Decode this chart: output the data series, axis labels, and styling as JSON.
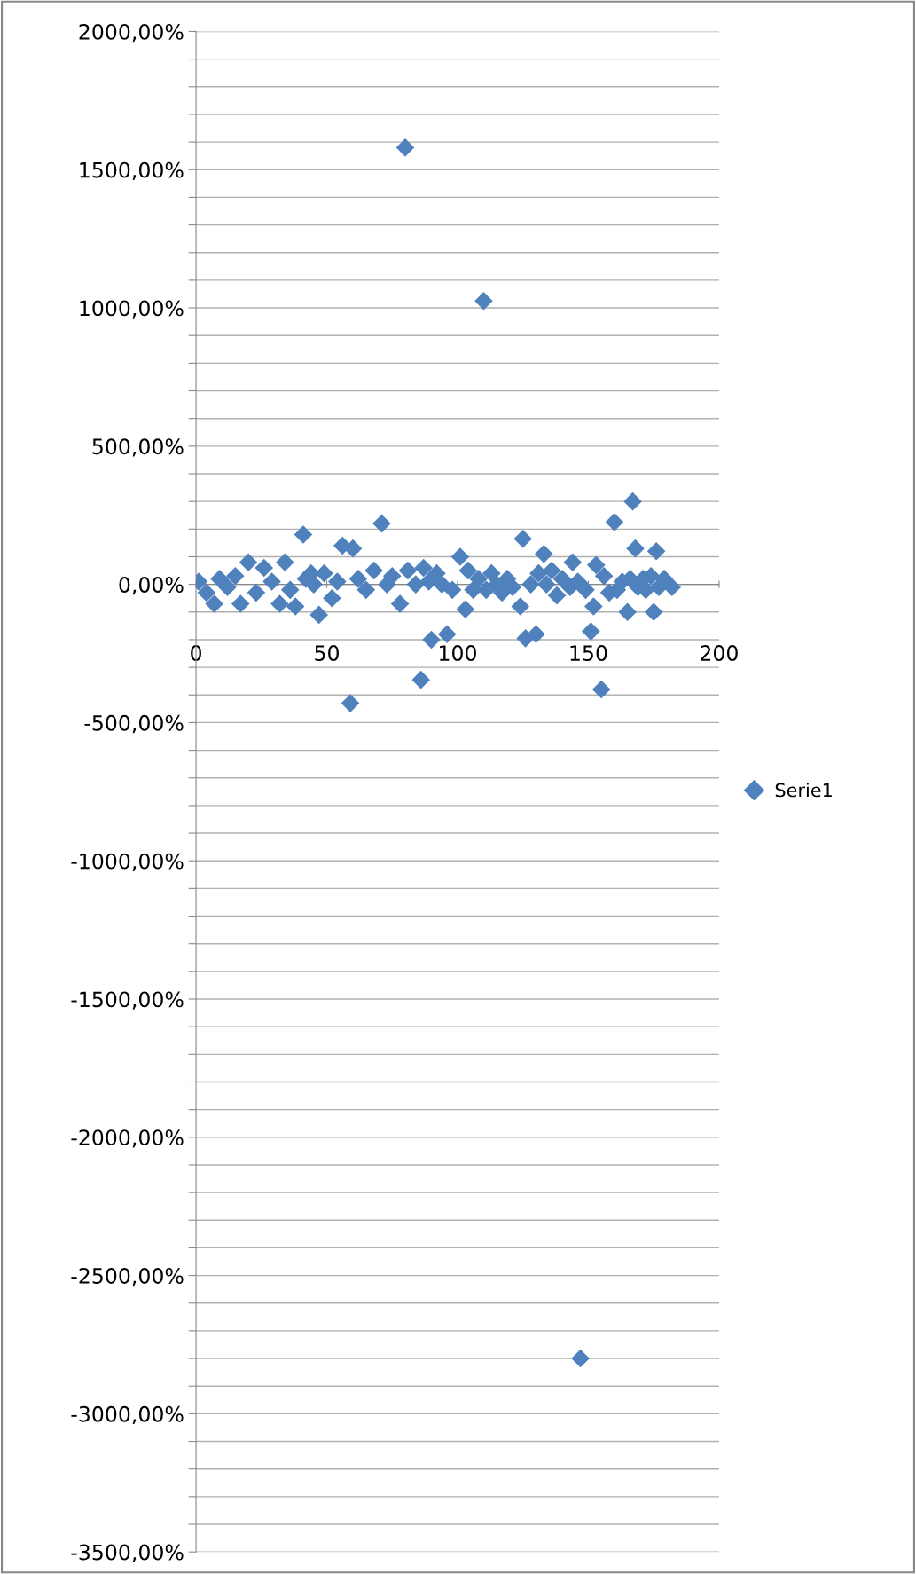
{
  "chart_data": {
    "type": "scatter",
    "legend": "right",
    "marker": "diamond",
    "grid": "y",
    "xlim": [
      0,
      200
    ],
    "xticks": [
      0,
      50,
      100,
      150,
      200
    ],
    "ylim": [
      -3500,
      2000
    ],
    "yticks": [
      {
        "value": -3500,
        "label": "-3500,00%"
      },
      {
        "value": -3400,
        "label": null
      },
      {
        "value": -3300,
        "label": null
      },
      {
        "value": -3200,
        "label": null
      },
      {
        "value": -3100,
        "label": null
      },
      {
        "value": -3000,
        "label": "-3000,00%"
      },
      {
        "value": -2900,
        "label": null
      },
      {
        "value": -2800,
        "label": null
      },
      {
        "value": -2700,
        "label": null
      },
      {
        "value": -2600,
        "label": null
      },
      {
        "value": -2500,
        "label": "-2500,00%"
      },
      {
        "value": -2400,
        "label": null
      },
      {
        "value": -2300,
        "label": null
      },
      {
        "value": -2200,
        "label": null
      },
      {
        "value": -2100,
        "label": null
      },
      {
        "value": -2000,
        "label": "-2000,00%"
      },
      {
        "value": -1900,
        "label": null
      },
      {
        "value": -1800,
        "label": null
      },
      {
        "value": -1700,
        "label": null
      },
      {
        "value": -1600,
        "label": null
      },
      {
        "value": -1500,
        "label": "-1500,00%"
      },
      {
        "value": -1400,
        "label": null
      },
      {
        "value": -1300,
        "label": null
      },
      {
        "value": -1200,
        "label": null
      },
      {
        "value": -1100,
        "label": null
      },
      {
        "value": -1000,
        "label": "-1000,00%"
      },
      {
        "value": -900,
        "label": null
      },
      {
        "value": -800,
        "label": null
      },
      {
        "value": -700,
        "label": null
      },
      {
        "value": -600,
        "label": null
      },
      {
        "value": -500,
        "label": "-500,00%"
      },
      {
        "value": -400,
        "label": null
      },
      {
        "value": -300,
        "label": null
      },
      {
        "value": -200,
        "label": null
      },
      {
        "value": -100,
        "label": null
      },
      {
        "value": 0,
        "label": "0,00%"
      },
      {
        "value": 100,
        "label": null
      },
      {
        "value": 200,
        "label": null
      },
      {
        "value": 300,
        "label": null
      },
      {
        "value": 400,
        "label": null
      },
      {
        "value": 500,
        "label": "500,00%"
      },
      {
        "value": 600,
        "label": null
      },
      {
        "value": 700,
        "label": null
      },
      {
        "value": 800,
        "label": null
      },
      {
        "value": 900,
        "label": null
      },
      {
        "value": 1000,
        "label": "1000,00%"
      },
      {
        "value": 1100,
        "label": null
      },
      {
        "value": 1200,
        "label": null
      },
      {
        "value": 1300,
        "label": null
      },
      {
        "value": 1400,
        "label": null
      },
      {
        "value": 1500,
        "label": "1500,00%"
      },
      {
        "value": 1600,
        "label": null
      },
      {
        "value": 1700,
        "label": null
      },
      {
        "value": 1800,
        "label": null
      },
      {
        "value": 1900,
        "label": null
      },
      {
        "value": 2000,
        "label": "2000,00%"
      }
    ],
    "series": [
      {
        "name": "Serie1",
        "color": "#4f81bd",
        "x": [
          1,
          4,
          7,
          9,
          12,
          15,
          17,
          20,
          23,
          26,
          29,
          32,
          34,
          36,
          38,
          41,
          42,
          44,
          45,
          47,
          49,
          52,
          54,
          56,
          59,
          60,
          62,
          65,
          68,
          71,
          73,
          75,
          78,
          80,
          81,
          84,
          86,
          87,
          89,
          90,
          92,
          94,
          96,
          98,
          101,
          103,
          104,
          106,
          108,
          110,
          111,
          113,
          115,
          117,
          119,
          121,
          124,
          125,
          126,
          128,
          130,
          131,
          133,
          134,
          136,
          138,
          140,
          143,
          144,
          146,
          147,
          149,
          151,
          152,
          153,
          155,
          156,
          158,
          160,
          161,
          163,
          165,
          166,
          167,
          168,
          169,
          171,
          172,
          174,
          175,
          176,
          177,
          179,
          182
        ],
        "values": [
          10,
          -30,
          -70,
          20,
          -10,
          30,
          -70,
          80,
          -30,
          60,
          10,
          -70,
          80,
          -20,
          -80,
          180,
          20,
          40,
          0,
          -110,
          40,
          -50,
          10,
          140,
          -430,
          130,
          20,
          -20,
          50,
          220,
          0,
          30,
          -70,
          1580,
          50,
          0,
          -345,
          60,
          10,
          -200,
          40,
          0,
          -180,
          -20,
          100,
          -90,
          50,
          -20,
          20,
          1025,
          -20,
          40,
          0,
          -30,
          20,
          -10,
          -80,
          165,
          -195,
          0,
          -180,
          40,
          110,
          0,
          50,
          -40,
          20,
          -10,
          80,
          10,
          -2800,
          -20,
          -170,
          -80,
          70,
          -380,
          30,
          -30,
          225,
          -20,
          10,
          -100,
          20,
          300,
          130,
          -10,
          20,
          -20,
          30,
          -100,
          120,
          -10,
          20,
          -10
        ]
      }
    ]
  }
}
